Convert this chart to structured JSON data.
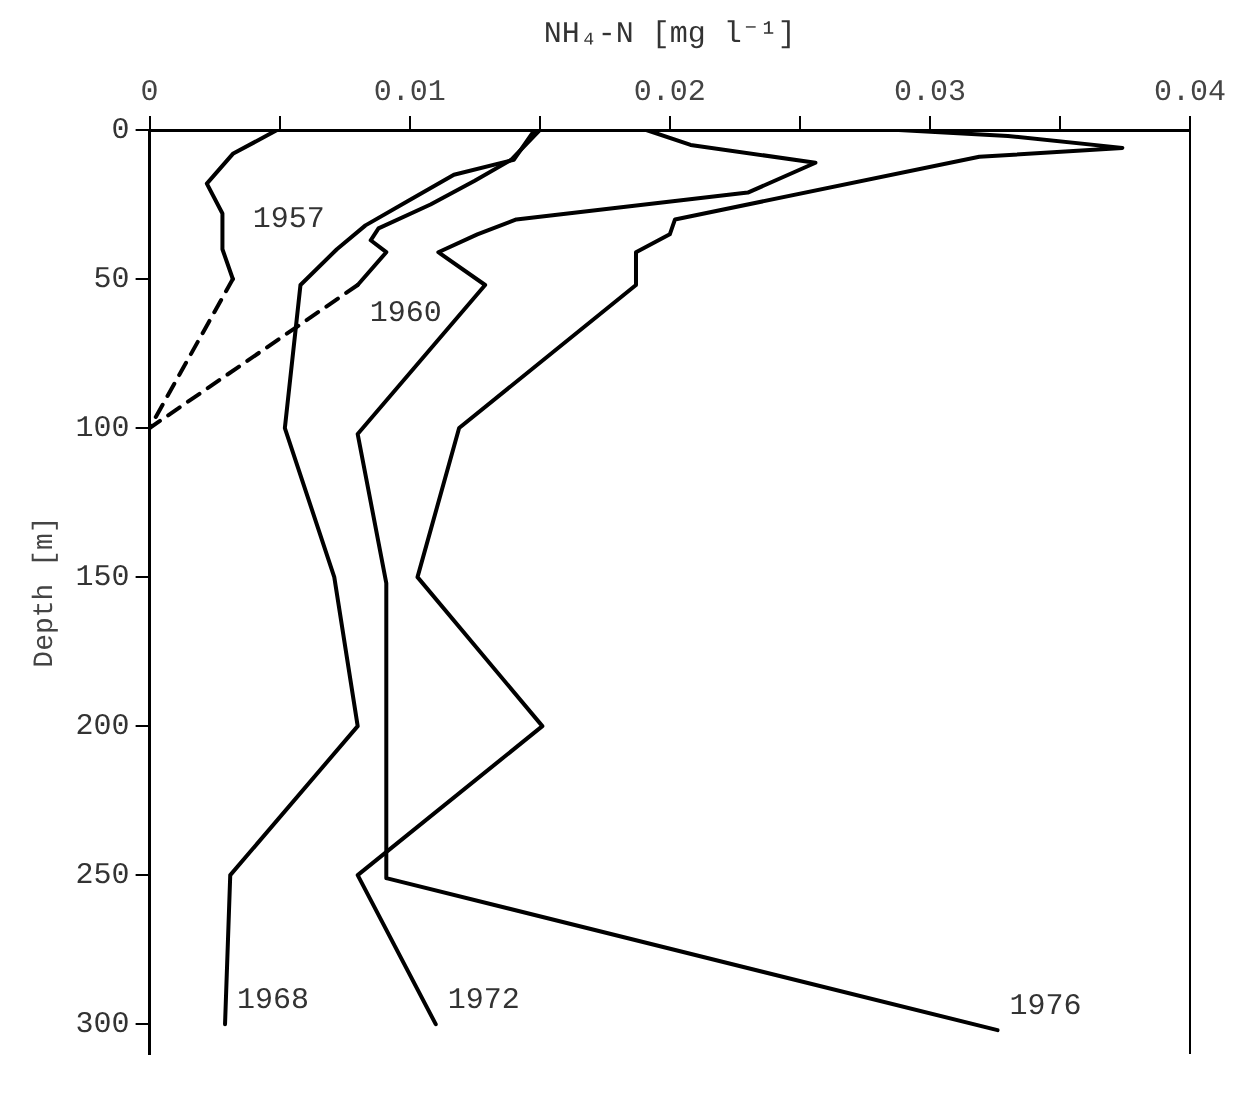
{
  "chart_data": {
    "type": "line",
    "xlabel": "NH₄-N [mg l⁻¹]",
    "ylabel": "Depth [m]",
    "xlim": [
      0,
      0.04
    ],
    "xticks": [
      0,
      {
        "value": 0.005,
        "label": null
      },
      0.01,
      {
        "value": 0.015,
        "label": null
      },
      0.02,
      {
        "value": 0.025,
        "label": null
      },
      0.03,
      {
        "value": 0.035,
        "label": null
      },
      0.04
    ],
    "ylim": [
      310,
      0
    ],
    "yticks": [
      0,
      50,
      100,
      150,
      200,
      250,
      300
    ],
    "grid": false,
    "legend": false,
    "marker": "none",
    "line_style": "solid",
    "series": [
      {
        "name": "1957",
        "color": "#000000",
        "x": [
          0.0049,
          0.0032,
          0.0022,
          0.0028,
          0.0028,
          0.0032
        ],
        "values": [
          0,
          8,
          18,
          28,
          40,
          50
        ]
      },
      {
        "color": "#000000",
        "line_style": "dashed",
        "x": [
          0.0032,
          0
        ],
        "values": [
          50,
          100
        ]
      },
      {
        "name": "1960",
        "color": "#000000",
        "x": [
          0.015,
          0.0139,
          0.0125,
          0.0108,
          0.0088,
          0.0085,
          0.0091,
          0.008
        ],
        "values": [
          0,
          10,
          17,
          25,
          33,
          37,
          41,
          52
        ]
      },
      {
        "color": "#000000",
        "line_style": "dashed",
        "x": [
          0.008,
          0
        ],
        "values": [
          52,
          100
        ]
      },
      {
        "name": "1968",
        "color": "#000000",
        "x": [
          0.0148,
          0.014,
          0.0117,
          0.0099,
          0.0083,
          0.0072,
          0.0058,
          0.0052,
          0.0071,
          0.008,
          0.0031,
          0.0029
        ],
        "values": [
          0,
          10,
          15,
          24,
          32,
          40,
          52,
          100,
          150,
          200,
          250,
          300
        ]
      },
      {
        "name": "1972",
        "color": "#000000",
        "x": [
          0.0288,
          0.033,
          0.0374,
          0.0319,
          0.0202,
          0.02,
          0.0187,
          0.0187,
          0.0119,
          0.0103,
          0.0151,
          0.008,
          0.011
        ],
        "values": [
          0,
          2,
          6,
          9,
          30,
          35,
          41,
          52,
          100,
          150,
          200,
          250,
          300
        ]
      },
      {
        "name": "1976",
        "color": "#000000",
        "x": [
          0.0191,
          0.0208,
          0.0256,
          0.023,
          0.0141,
          0.0126,
          0.0111,
          0.0129,
          0.008,
          0.0091,
          0.0091,
          0.0326
        ],
        "values": [
          0,
          5,
          11,
          21,
          30,
          35,
          41,
          52,
          102,
          152,
          251,
          302
        ]
      }
    ]
  }
}
